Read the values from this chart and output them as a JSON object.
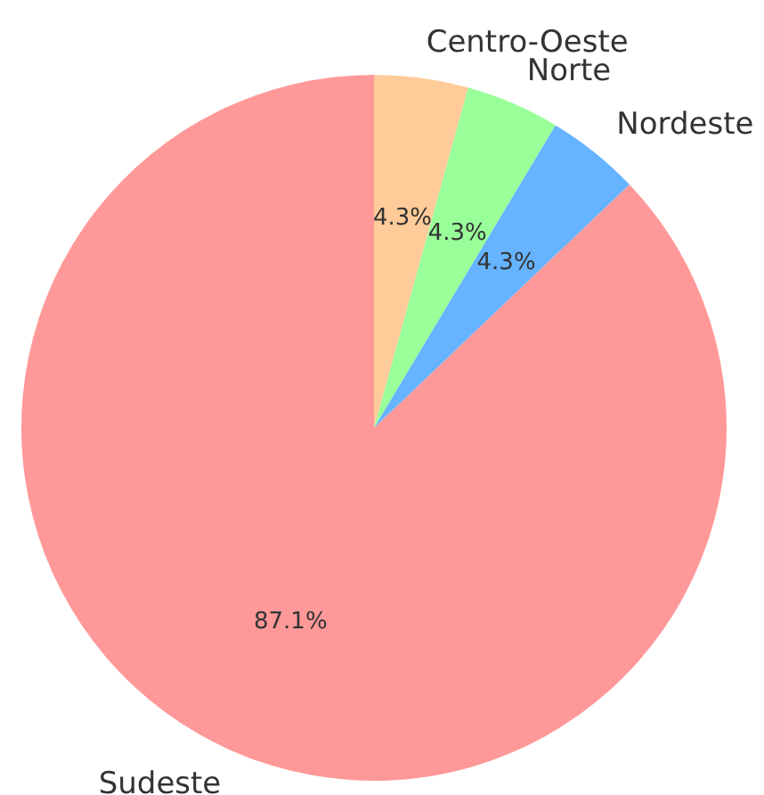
{
  "chart_data": {
    "type": "pie",
    "categories": [
      "Sudeste",
      "Nordeste",
      "Norte",
      "Centro-Oeste"
    ],
    "values": [
      87.1,
      4.3,
      4.3,
      4.3
    ],
    "colors": [
      "#ff9999",
      "#66b3ff",
      "#99ff99",
      "#ffcc99"
    ],
    "value_labels": [
      "87.1%",
      "4.3%",
      "4.3%",
      "4.3%"
    ],
    "legend": false
  }
}
